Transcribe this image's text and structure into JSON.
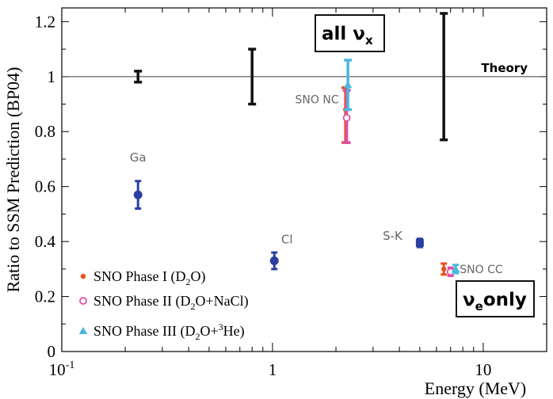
{
  "chart_data": {
    "type": "scatter",
    "title": "",
    "xlabel": "Energy (MeV)",
    "ylabel": "Ratio to SSM Prediction (BP04)",
    "xscale": "log",
    "xlim": [
      0.1,
      20
    ],
    "ylim": [
      0,
      1.25
    ],
    "xticks": [
      {
        "label_base": "10",
        "label_exp": "-1",
        "value": 0.1
      },
      {
        "label_base": "1",
        "label_exp": "",
        "value": 1
      },
      {
        "label_base": "10",
        "label_exp": "",
        "value": 10
      }
    ],
    "yticks": [
      "0",
      "0.2",
      "0.4",
      "0.6",
      "0.8",
      "1",
      "1.2"
    ],
    "theory_line": {
      "y": 1.0,
      "label": "Theory"
    },
    "theory_uncertainties": [
      {
        "x": 0.23,
        "low": 0.98,
        "high": 1.02
      },
      {
        "x": 0.8,
        "low": 0.9,
        "high": 1.1
      },
      {
        "x": 6.5,
        "low": 0.77,
        "high": 1.23
      }
    ],
    "experiments": [
      {
        "label": "Ga",
        "x": 0.23,
        "y": 0.57,
        "low": 0.52,
        "high": 0.62,
        "color": "#2b3fa0"
      },
      {
        "label": "Cl",
        "x": 1.02,
        "y": 0.33,
        "low": 0.3,
        "high": 0.36,
        "color": "#2b3fa0"
      },
      {
        "label": "S-K",
        "x": 5.0,
        "y": 0.395,
        "low": 0.38,
        "high": 0.41,
        "color": "#2b3fa0"
      }
    ],
    "sno_nc": {
      "label": "SNO NC",
      "points": [
        {
          "series": "SNO Phase I (D2O)",
          "x": 2.25,
          "y": 0.88,
          "low": 0.76,
          "high": 0.96
        },
        {
          "series": "SNO Phase II (D2O+NaCl)",
          "x": 2.25,
          "y": 0.85,
          "low": 0.76,
          "high": 0.95
        },
        {
          "series": "SNO Phase III (D2O+3He)",
          "x": 2.25,
          "y": 0.97,
          "low": 0.88,
          "high": 1.06
        }
      ]
    },
    "sno_cc": {
      "label": "SNO CC",
      "points": [
        {
          "series": "SNO Phase I (D2O)",
          "x": 6.5,
          "y": 0.3,
          "low": 0.28,
          "high": 0.32
        },
        {
          "series": "SNO Phase II (D2O+NaCl)",
          "x": 7.0,
          "y": 0.29,
          "low": 0.275,
          "high": 0.305
        },
        {
          "series": "SNO Phase III (D2O+3He)",
          "x": 7.4,
          "y": 0.3,
          "low": 0.285,
          "high": 0.315
        }
      ]
    },
    "series": [
      {
        "name": "SNO Phase I",
        "formula": "D2O",
        "marker": "dot",
        "color": "#e8521a"
      },
      {
        "name": "SNO Phase II",
        "formula": "D2O+NaCl",
        "marker": "circle",
        "color": "#e04fa8"
      },
      {
        "name": "SNO Phase III",
        "formula": "D2O+3He",
        "marker": "triangle",
        "color": "#49b8df"
      }
    ],
    "legend_position": "bottom-left",
    "boxes": {
      "all": {
        "text": "all ν",
        "sub": "x"
      },
      "only": {
        "text": "ν",
        "sub": "e",
        "suffix": "only"
      }
    }
  }
}
